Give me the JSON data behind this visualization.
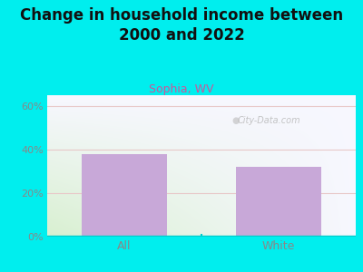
{
  "title": "Change in household income between\n2000 and 2022",
  "subtitle": "Sophia, WV",
  "categories": [
    "All",
    "White"
  ],
  "values": [
    38.0,
    32.0
  ],
  "bar_color": "#c8a8d8",
  "background_color": "#00EEEE",
  "plot_bg_color_bottom_left": "#d8f0d0",
  "plot_bg_color_top_right": "#f8f8ff",
  "title_fontsize": 12,
  "subtitle_fontsize": 9,
  "ylabel_ticks": [
    "0%",
    "20%",
    "40%",
    "60%"
  ],
  "yticks": [
    0,
    20,
    40,
    60
  ],
  "ylim": [
    0,
    65
  ],
  "subtitle_color": "#cc5599",
  "grid_color": "#e8c8c8",
  "tick_color": "#888888",
  "watermark": "City-Data.com",
  "watermark_color": "#bbbbbb",
  "axis_bottom_color": "#00CCCC",
  "divider_color": "#00CCCC"
}
